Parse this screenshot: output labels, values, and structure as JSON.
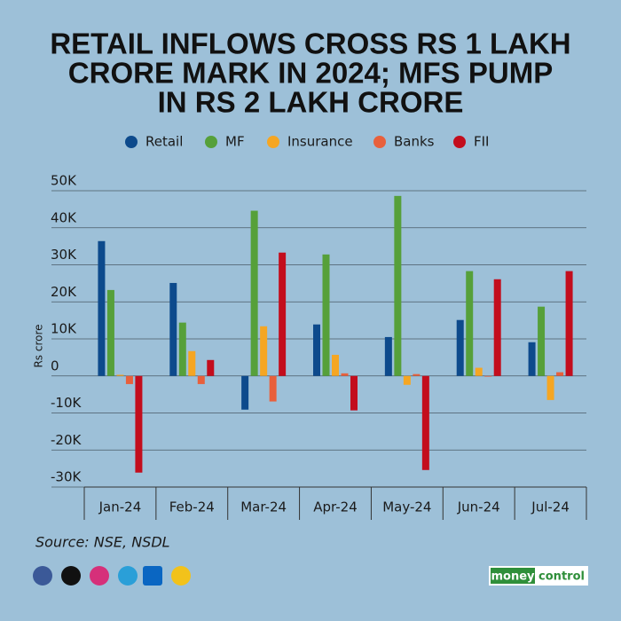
{
  "chart_data": {
    "type": "bar",
    "title": [
      "RETAIL INFLOWS CROSS RS 1 LAKH",
      "CRORE MARK IN 2024; MFS PUMP",
      "IN RS 2 LAKH CRORE"
    ],
    "y_label": "Rs crore",
    "categories": [
      "Jan-24",
      "Feb-24",
      "Mar-24",
      "Apr-24",
      "May-24",
      "Jun-24",
      "Jul-24"
    ],
    "series": [
      {
        "name": "Retail",
        "color": "#0d4a8c",
        "values": [
          36400,
          25100,
          -9100,
          13900,
          10500,
          15100,
          9100
        ]
      },
      {
        "name": "MF",
        "color": "#56a03a",
        "values": [
          23200,
          14400,
          44600,
          32800,
          48600,
          28300,
          18700
        ]
      },
      {
        "name": "Insurance",
        "color": "#f5a623",
        "values": [
          300,
          6700,
          13400,
          5700,
          -2400,
          2200,
          -6500
        ]
      },
      {
        "name": "Banks",
        "color": "#e8603c",
        "values": [
          -2200,
          -2200,
          -6900,
          700,
          500,
          -200,
          1000
        ]
      },
      {
        "name": "FII",
        "color": "#c30d1d",
        "values": [
          -26100,
          4300,
          33300,
          -9300,
          -25400,
          26100,
          28300
        ]
      }
    ],
    "ylim": [
      -30000,
      50000
    ],
    "yticks": [
      {
        "value": -30000,
        "label": "-30K"
      },
      {
        "value": -20000,
        "label": "-20K"
      },
      {
        "value": -10000,
        "label": "-10K"
      },
      0,
      {
        "value": 10000,
        "label": "10K"
      },
      {
        "value": 20000,
        "label": "20K"
      },
      {
        "value": 30000,
        "label": "30K"
      },
      {
        "value": 40000,
        "label": "40K"
      },
      {
        "value": 50000,
        "label": "50K"
      }
    ],
    "grid": true,
    "legend": "top",
    "source": "Source: NSE, NSDL",
    "brand": [
      "money",
      "control"
    ]
  }
}
